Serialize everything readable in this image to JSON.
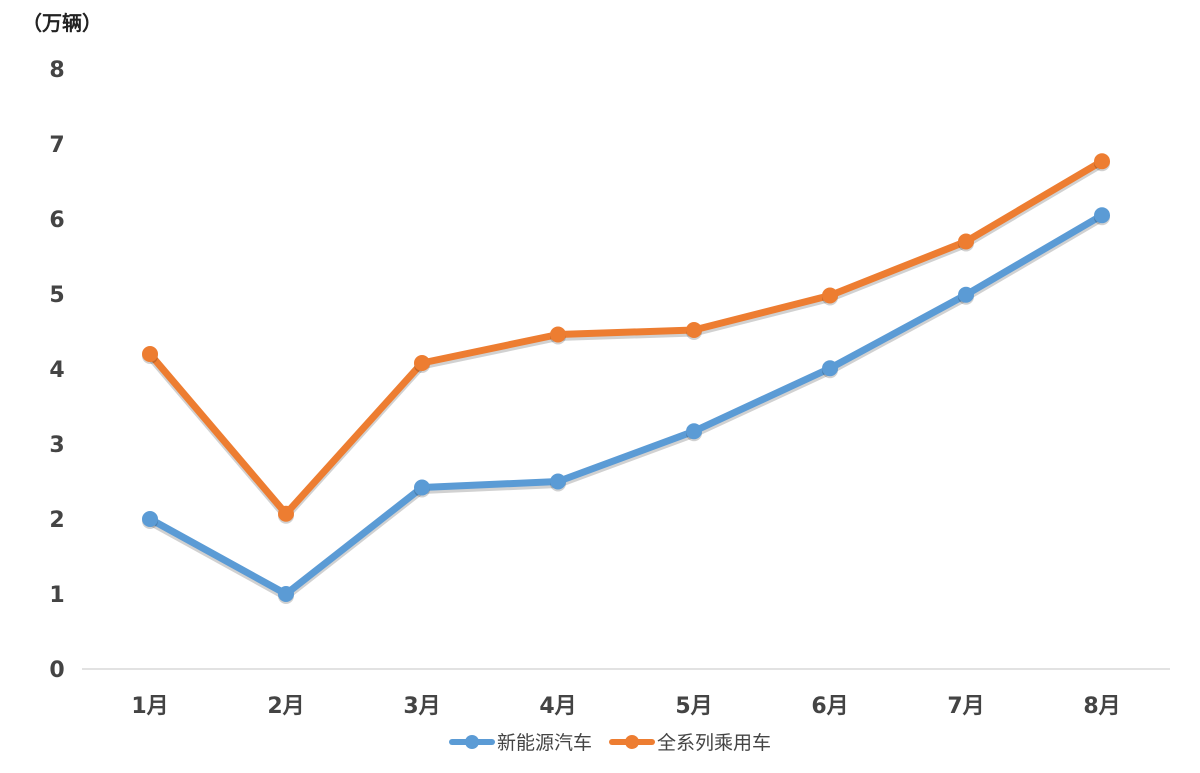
{
  "chart_data": {
    "type": "line",
    "unit_label": "（万辆）",
    "categories": [
      "1月",
      "2月",
      "3月",
      "4月",
      "5月",
      "6月",
      "7月",
      "8月"
    ],
    "ylim": [
      0,
      8
    ],
    "yticks": [
      "0",
      "1",
      "2",
      "3",
      "4",
      "5",
      "6",
      "7",
      "8"
    ],
    "grid": false,
    "legend_position": "bottom",
    "series": [
      {
        "name": "新能源汽车",
        "color": "#5B9BD5",
        "values": [
          2.0,
          1.0,
          2.42,
          2.5,
          3.17,
          4.01,
          4.99,
          6.05
        ]
      },
      {
        "name": "全系列乘用车",
        "color": "#ED7D31",
        "values": [
          4.2,
          2.07,
          4.08,
          4.46,
          4.52,
          4.98,
          5.7,
          6.77
        ]
      }
    ]
  }
}
